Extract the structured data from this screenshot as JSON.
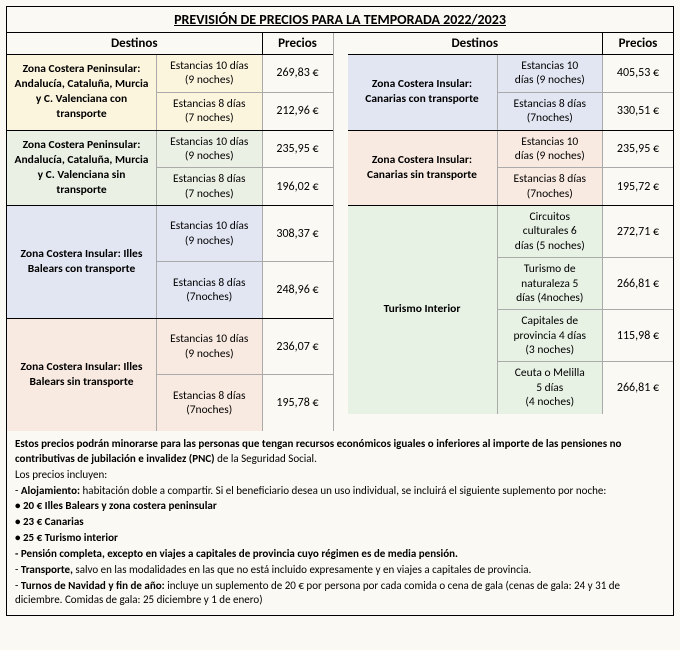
{
  "title": "PREVISIÓN DE PRECIOS PARA LA TEMPORADA 2022/2023",
  "headers": {
    "dest": "Destinos",
    "price": "Precios"
  },
  "colors": {
    "yellow": "#fcf5de",
    "green": "#eaf0e4",
    "blue": "#e2e6f2",
    "peach": "#f9eae1",
    "lightgreen": "#e7f1e4"
  },
  "left": [
    {
      "dest": "Zona Costera Peninsular: Andalucía, Cataluña, Murcia y C. Valenciana con transporte",
      "bg": "#fcf5de",
      "rows": [
        {
          "stay1": "Estancias 10 días",
          "stay2": "(9 noches)",
          "price": "269,83 €"
        },
        {
          "stay1": "Estancias 8 días",
          "stay2": "(7 noches)",
          "price": "212,96 €"
        }
      ]
    },
    {
      "dest": "Zona Costera Peninsular: Andalucía, Cataluña, Murcia y C. Valenciana sin transporte",
      "bg": "#eaf0e4",
      "rows": [
        {
          "stay1": "Estancias 10 días",
          "stay2": "(9 noches)",
          "price": "235,95 €"
        },
        {
          "stay1": "Estancias 8 días",
          "stay2": "(7 noches)",
          "price": "196,02 €"
        }
      ]
    },
    {
      "dest": "Zona Costera Insular: Illes Balears con transporte",
      "bg": "#e2e6f2",
      "tall": true,
      "rows": [
        {
          "stay1": "Estancias 10 días",
          "stay2": "(9 noches)",
          "price": "308,37 €"
        },
        {
          "stay1": "Estancias 8 días",
          "stay2": "(7noches)",
          "price": "248,96 €"
        }
      ]
    },
    {
      "dest": "Zona Costera Insular: Illes Balears sin transporte",
      "bg": "#f9eae1",
      "tall": true,
      "rows": [
        {
          "stay1": "Estancias 10 días",
          "stay2": "(9 noches)",
          "price": "236,07 €"
        },
        {
          "stay1": "Estancias 8 días",
          "stay2": "(7noches)",
          "price": "195,78 €"
        }
      ]
    }
  ],
  "right": [
    {
      "dest": "Zona Costera Insular: Canarias con transporte",
      "bg": "#e2e6f2",
      "rows": [
        {
          "stay1": "Estancias 10",
          "stay2": "días (9 noches)",
          "price": "405,53 €"
        },
        {
          "stay1": "Estancias 8 días",
          "stay2": "(7noches)",
          "price": "330,51 €"
        }
      ]
    },
    {
      "dest": "Zona Costera Insular: Canarias sin transporte",
      "bg": "#f9eae1",
      "rows": [
        {
          "stay1": "Estancias 10",
          "stay2": "días (9 noches)",
          "price": "235,95 €"
        },
        {
          "stay1": "Estancias 8 días",
          "stay2": "(7noches)",
          "price": "195,72 €"
        }
      ]
    },
    {
      "dest": "Turismo Interior",
      "bg": "#e7f1e4",
      "rows": [
        {
          "stay1": "Circuitos",
          "stay2": "culturales 6",
          "stay3": "días (5 noches)",
          "price": "272,71 €"
        },
        {
          "stay1": "Turismo de",
          "stay2": "naturaleza  5",
          "stay3": "días (4noches)",
          "price": "266,81 €"
        },
        {
          "stay1": "Capitales de",
          "stay2": "provincia 4 días",
          "stay3": "(3 noches)",
          "price": "115,98 €"
        },
        {
          "stay1": "Ceuta o Melilla",
          "stay2": "5 días",
          "stay3": "(4 noches)",
          "price": "266,81 €"
        }
      ]
    }
  ],
  "notes": {
    "l1a": "Estos precios podrán minorarse para las personas que tengan recursos económicos iguales o inferiores al importe de las pensiones no contributivas de jubilación e invalidez (PNC)",
    "l1b": " de la Seguridad Social.",
    "l2": "Los precios incluyen:",
    "l3a": "- ",
    "l3b": "Alojamiento:",
    "l3c": " habitación doble a compartir. Si el beneficiario desea un uso individual, se incluirá el siguiente suplemento por noche:",
    "l4": "• 20 € Illes Balears y zona costera peninsular",
    "l5": "• 23 € Canarias",
    "l6": "• 25 € Turismo interior",
    "l7": "- Pensión completa, excepto en viajes a capitales de provincia cuyo régimen es de media pensión.",
    "l8a": "- ",
    "l8b": "Transporte,",
    "l8c": " salvo en las modalidades en las que no está incluido expresamente y en viajes a capitales de provincia.",
    "l9a": "- ",
    "l9b": "Turnos de Navidad y fin de año:",
    "l9c": " incluye un suplemento de 20 € por persona por cada comida o cena de gala (cenas de gala: 24 y 31 de diciembre. Comidas de gala: 25 diciembre y 1 de enero)"
  }
}
